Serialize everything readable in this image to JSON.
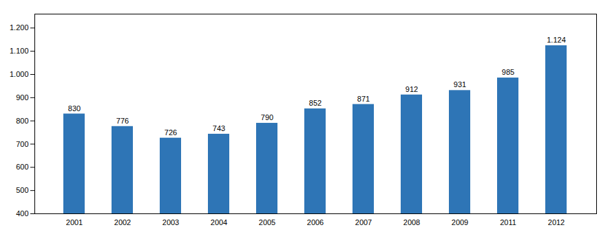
{
  "chart_data": {
    "type": "bar",
    "categories": [
      "2001",
      "2002",
      "2003",
      "2004",
      "2005",
      "2006",
      "2007",
      "2008",
      "2009",
      "2011",
      "2012"
    ],
    "values": [
      830,
      776,
      726,
      743,
      790,
      852,
      871,
      912,
      931,
      985,
      1124
    ],
    "value_labels": [
      "830",
      "776",
      "726",
      "743",
      "790",
      "852",
      "871",
      "912",
      "931",
      "985",
      "1.124"
    ],
    "color": "#2E75B6",
    "ylim": [
      400,
      1260
    ],
    "yticks": [
      400,
      500,
      600,
      700,
      800,
      900,
      {
        "value": 1000,
        "label": "1.000"
      },
      {
        "value": 1100,
        "label": "1.100"
      },
      {
        "value": 1200,
        "label": "1.200"
      }
    ],
    "grid": false,
    "data_labels": true
  }
}
